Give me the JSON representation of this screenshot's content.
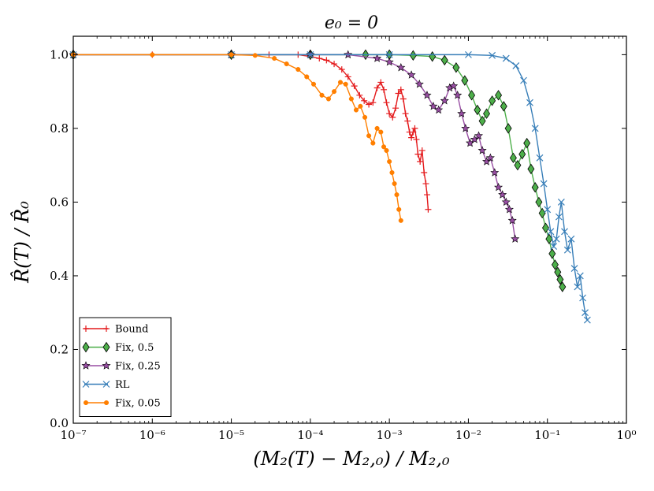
{
  "chart_data": {
    "type": "line",
    "title": "e₀ = 0",
    "xlabel": "(M₂(T) − M₂,₀) / M₂,₀",
    "ylabel": "R̂(T) / R̂₀",
    "xscale": "log",
    "xlim": [
      1e-07,
      1
    ],
    "ylim": [
      0.0,
      1.05
    ],
    "xticks": [
      1e-07,
      1e-06,
      1e-05,
      0.0001,
      0.001,
      0.01,
      0.1,
      1
    ],
    "xtick_labels": [
      "10⁻⁷",
      "10⁻⁶",
      "10⁻⁵",
      "10⁻⁴",
      "10⁻³",
      "10⁻²",
      "10⁻¹",
      "10⁰"
    ],
    "yticks": [
      0.0,
      0.2,
      0.4,
      0.6,
      0.8,
      1.0
    ],
    "ytick_labels": [
      "0.0",
      "0.2",
      "0.4",
      "0.6",
      "0.8",
      "1.0"
    ],
    "legend_position": "lower-left",
    "series": [
      {
        "name": "Bound",
        "color": "#e41a1c",
        "marker": "plus",
        "x": [
          1e-07,
          1e-06,
          1e-05,
          3e-05,
          7e-05,
          0.0001,
          0.00013,
          0.00016,
          0.0002,
          0.00025,
          0.0003,
          0.00036,
          0.00042,
          0.00048,
          0.00055,
          0.00062,
          0.0007,
          0.00078,
          0.00085,
          0.00092,
          0.001,
          0.0011,
          0.0012,
          0.0013,
          0.0014,
          0.0015,
          0.0016,
          0.0017,
          0.0018,
          0.0019,
          0.002,
          0.0021,
          0.0022,
          0.0023,
          0.00245,
          0.0026,
          0.00275,
          0.0029,
          0.003,
          0.0031
        ],
        "y": [
          1.0,
          1.0,
          1.0,
          1.0,
          1.0,
          0.995,
          0.99,
          0.985,
          0.975,
          0.96,
          0.94,
          0.915,
          0.89,
          0.875,
          0.865,
          0.87,
          0.91,
          0.925,
          0.905,
          0.87,
          0.84,
          0.83,
          0.855,
          0.895,
          0.905,
          0.88,
          0.84,
          0.82,
          0.79,
          0.775,
          0.79,
          0.8,
          0.77,
          0.73,
          0.71,
          0.74,
          0.68,
          0.65,
          0.62,
          0.58
        ]
      },
      {
        "name": "Fix, 0.5",
        "color": "#4daf4a",
        "marker": "diamond",
        "x": [
          1e-07,
          1e-05,
          0.0001,
          0.0005,
          0.001,
          0.002,
          0.0035,
          0.005,
          0.007,
          0.009,
          0.011,
          0.013,
          0.015,
          0.017,
          0.02,
          0.024,
          0.028,
          0.032,
          0.037,
          0.042,
          0.048,
          0.055,
          0.062,
          0.07,
          0.078,
          0.086,
          0.095,
          0.105,
          0.115,
          0.125,
          0.135,
          0.145,
          0.155
        ],
        "y": [
          1.0,
          1.0,
          1.0,
          1.0,
          1.0,
          0.998,
          0.995,
          0.985,
          0.965,
          0.93,
          0.89,
          0.85,
          0.82,
          0.84,
          0.875,
          0.89,
          0.86,
          0.8,
          0.72,
          0.7,
          0.73,
          0.76,
          0.69,
          0.64,
          0.6,
          0.57,
          0.53,
          0.5,
          0.46,
          0.43,
          0.41,
          0.39,
          0.37
        ]
      },
      {
        "name": "Fix, 0.25",
        "color": "#984ea3",
        "marker": "star",
        "x": [
          1e-07,
          1e-05,
          0.0001,
          0.0003,
          0.0007,
          0.001,
          0.0014,
          0.0019,
          0.0024,
          0.003,
          0.0036,
          0.0042,
          0.005,
          0.0058,
          0.0065,
          0.0073,
          0.0082,
          0.0092,
          0.0105,
          0.012,
          0.0135,
          0.015,
          0.017,
          0.019,
          0.0215,
          0.024,
          0.027,
          0.03,
          0.033,
          0.036,
          0.039
        ],
        "y": [
          1.0,
          1.0,
          1.0,
          1.0,
          0.99,
          0.98,
          0.965,
          0.945,
          0.92,
          0.89,
          0.86,
          0.85,
          0.875,
          0.91,
          0.915,
          0.89,
          0.84,
          0.8,
          0.76,
          0.77,
          0.78,
          0.74,
          0.71,
          0.72,
          0.68,
          0.64,
          0.62,
          0.6,
          0.58,
          0.55,
          0.5
        ]
      },
      {
        "name": "RL",
        "color": "#377eb8",
        "marker": "x",
        "x": [
          1e-07,
          1e-05,
          0.0001,
          0.001,
          0.01,
          0.02,
          0.03,
          0.04,
          0.05,
          0.06,
          0.07,
          0.08,
          0.09,
          0.1,
          0.11,
          0.12,
          0.13,
          0.14,
          0.15,
          0.165,
          0.18,
          0.2,
          0.22,
          0.24,
          0.26,
          0.28,
          0.3,
          0.32
        ],
        "y": [
          1.0,
          1.0,
          1.0,
          1.0,
          1.0,
          0.998,
          0.99,
          0.97,
          0.93,
          0.87,
          0.8,
          0.72,
          0.65,
          0.58,
          0.52,
          0.48,
          0.5,
          0.56,
          0.6,
          0.52,
          0.47,
          0.5,
          0.42,
          0.37,
          0.4,
          0.34,
          0.3,
          0.28
        ]
      },
      {
        "name": "Fix, 0.05",
        "color": "#ff7f00",
        "marker": "circle",
        "x": [
          1e-07,
          1e-06,
          1e-05,
          2e-05,
          3.5e-05,
          5e-05,
          7e-05,
          9e-05,
          0.00011,
          0.00014,
          0.00017,
          0.0002,
          0.00024,
          0.00028,
          0.00033,
          0.00038,
          0.00043,
          0.00049,
          0.00055,
          0.00062,
          0.0007,
          0.00078,
          0.00085,
          0.00092,
          0.001,
          0.00108,
          0.00116,
          0.00124,
          0.00132,
          0.0014
        ],
        "y": [
          1.0,
          1.0,
          1.0,
          0.998,
          0.99,
          0.975,
          0.96,
          0.94,
          0.92,
          0.89,
          0.88,
          0.9,
          0.925,
          0.92,
          0.88,
          0.85,
          0.86,
          0.83,
          0.78,
          0.76,
          0.8,
          0.79,
          0.75,
          0.74,
          0.71,
          0.68,
          0.65,
          0.62,
          0.58,
          0.55
        ]
      }
    ]
  }
}
